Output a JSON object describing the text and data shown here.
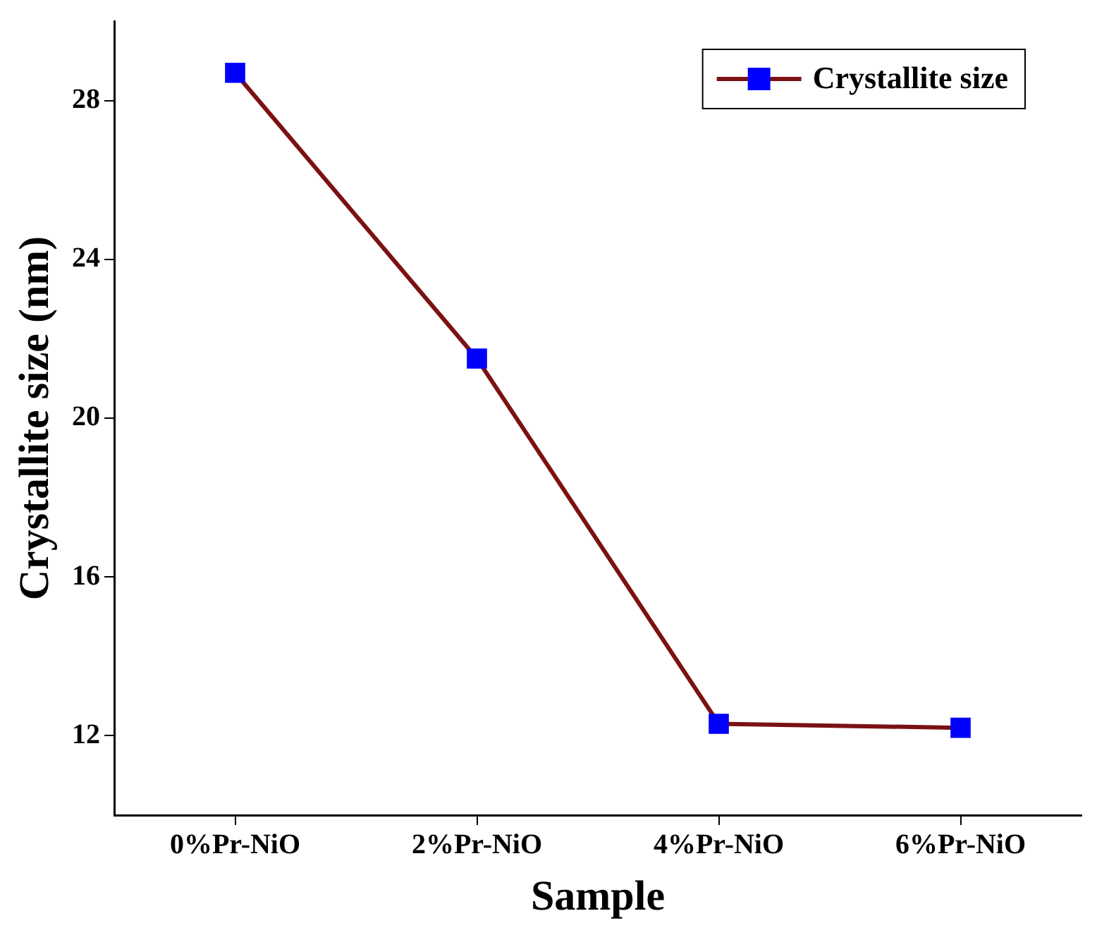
{
  "chart_data": {
    "type": "line",
    "xlabel": "Sample",
    "ylabel": "Crystallite size (nm)",
    "categories": [
      "0%Pr-NiO",
      "2%Pr-NiO",
      "4%Pr-NiO",
      "6%Pr-NiO"
    ],
    "series": [
      {
        "name": "Crystallite size",
        "color": "#7b1113",
        "colors": [
          "#0000ff",
          "#0000ff",
          "#0000ff",
          "#0000ff"
        ],
        "values": [
          28.7,
          21.5,
          12.3,
          12.2
        ]
      }
    ],
    "ylim": [
      10,
      30
    ],
    "yticks": [
      12,
      16,
      20,
      24,
      28
    ],
    "grid": false,
    "legend": "top right",
    "marker": "square",
    "line_style": "solid"
  }
}
